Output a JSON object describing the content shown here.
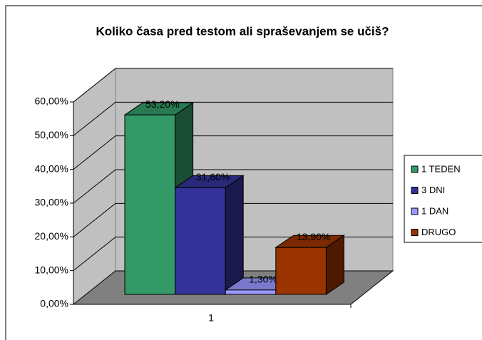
{
  "chart_data": {
    "type": "bar3d",
    "title": "Koliko časa pred testom ali spraševanjem se učiš?",
    "categories": [
      "1"
    ],
    "series": [
      {
        "name": "1 TEDEN",
        "color": "#339966",
        "values": [
          53.2
        ],
        "value_labels": [
          "53,20%"
        ]
      },
      {
        "name": "3 DNI",
        "color": "#333399",
        "values": [
          31.6
        ],
        "value_labels": [
          "31,60%"
        ]
      },
      {
        "name": "1 DAN",
        "color": "#9999ff",
        "values": [
          1.3
        ],
        "value_labels": [
          "1,30%"
        ]
      },
      {
        "name": "DRUGO",
        "color": "#993300",
        "values": [
          13.9
        ],
        "value_labels": [
          "13,90%"
        ]
      }
    ],
    "ylim": [
      0,
      60
    ],
    "yticks": [
      {
        "value": 0,
        "label": "0,00%"
      },
      {
        "value": 10,
        "label": "10,00%"
      },
      {
        "value": 20,
        "label": "20,00%"
      },
      {
        "value": 30,
        "label": "30,00%"
      },
      {
        "value": 40,
        "label": "40,00%"
      },
      {
        "value": 50,
        "label": "50,00%"
      },
      {
        "value": 60,
        "label": "60,00%"
      }
    ],
    "grid": true,
    "legend": "right"
  }
}
